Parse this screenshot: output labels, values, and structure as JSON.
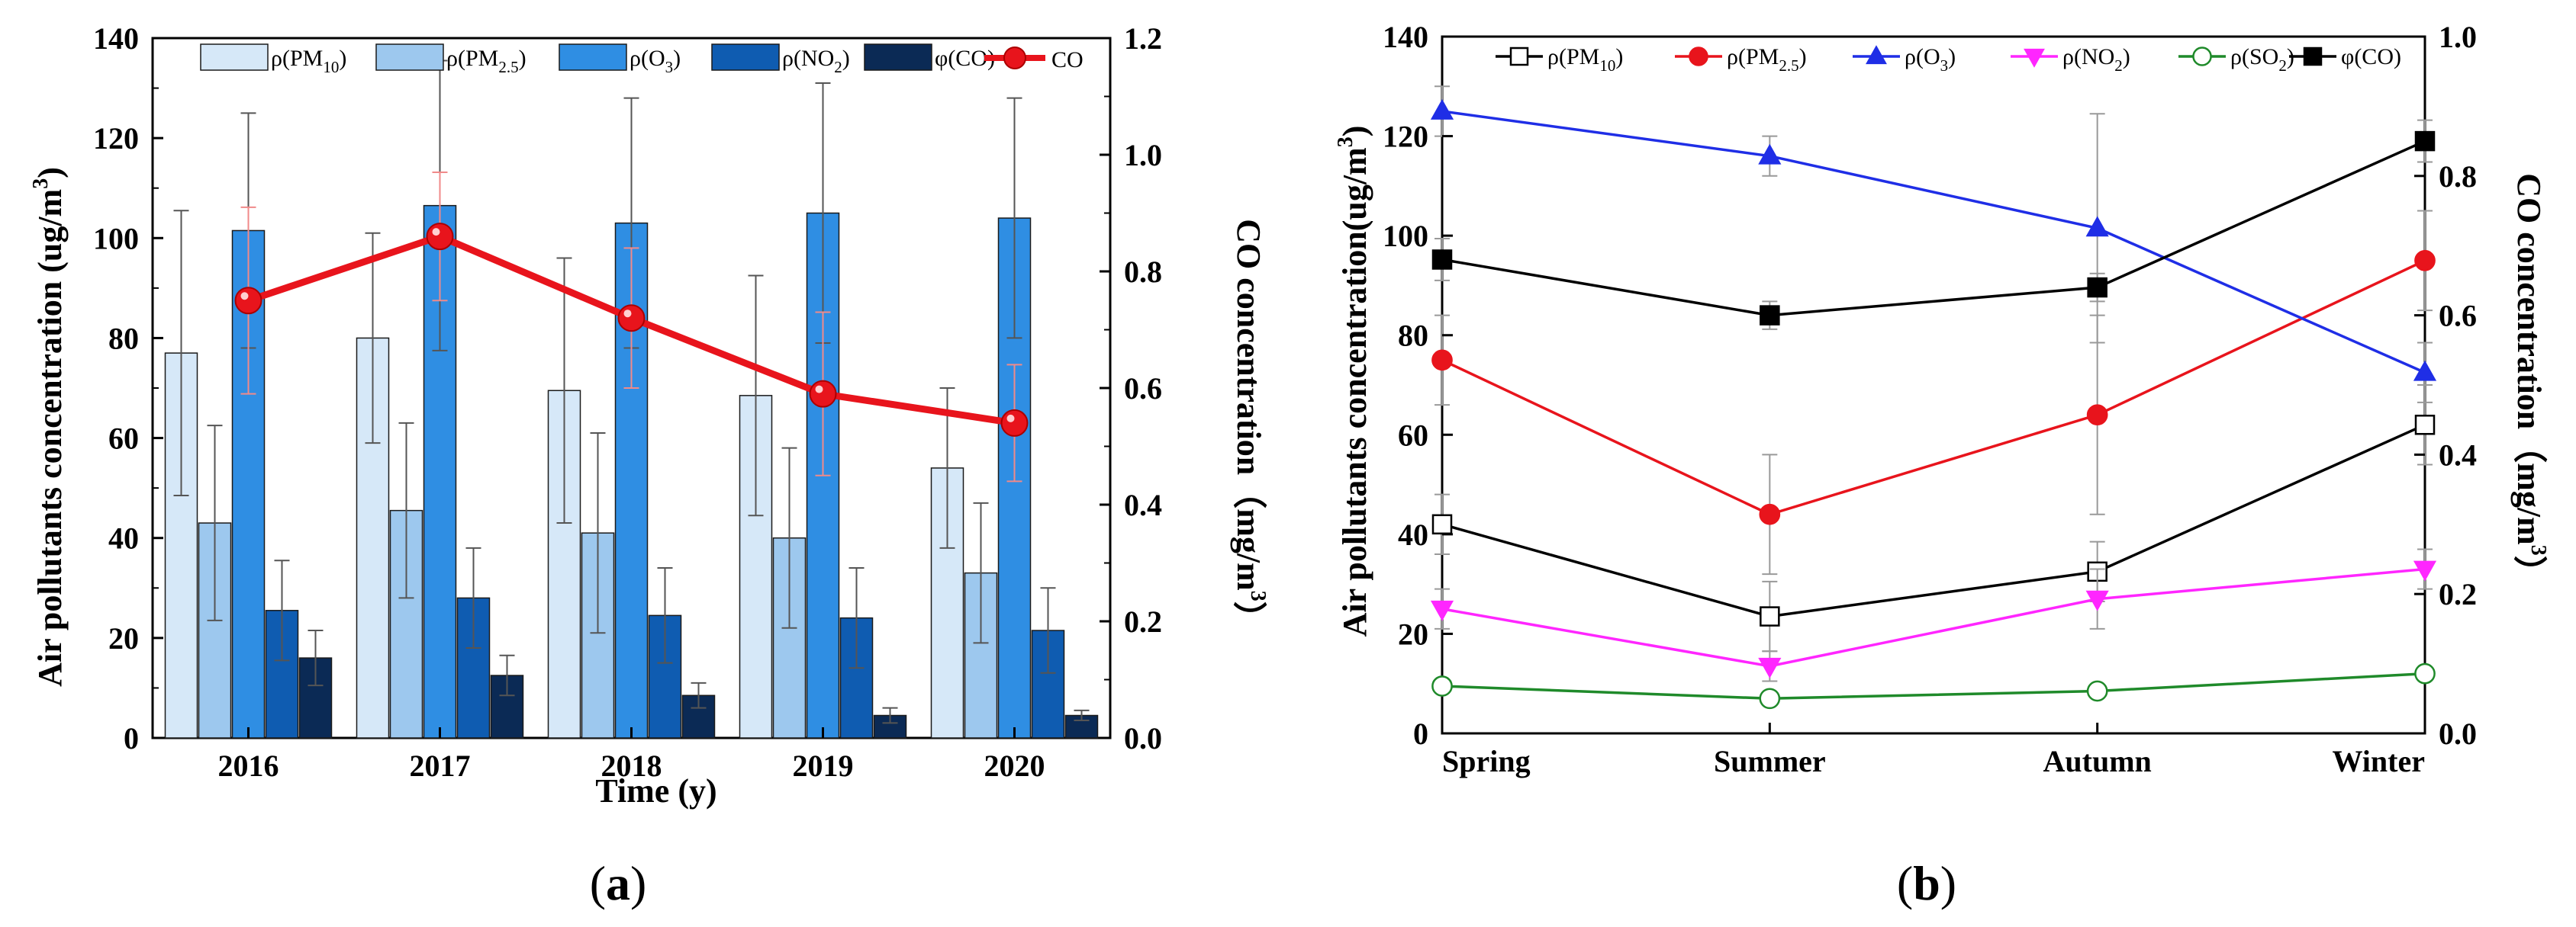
{
  "panels": [
    {
      "label": "a"
    },
    {
      "label": "b"
    }
  ],
  "chart_data": [
    {
      "type": "bar",
      "title": "",
      "xlabel": "Time (y)",
      "ylabel": "Air pollutants concentration (ug/m",
      "ylabel_sup": "3",
      "ylabel_tail": ")",
      "y2label": "CO concentration（mg/m",
      "y2label_sup": "3",
      "y2label_tail": "）",
      "categories": [
        "2016",
        "2017",
        "2018",
        "2019",
        "2020"
      ],
      "ylim": [
        0,
        140
      ],
      "yticks": [
        "0",
        "20",
        "40",
        "60",
        "80",
        "100",
        "120",
        "140"
      ],
      "y2lim": [
        0,
        1.2
      ],
      "y2ticks": [
        "0.0",
        "0.2",
        "0.4",
        "0.6",
        "0.8",
        "1.0",
        "1.2"
      ],
      "series": [
        {
          "name": "ρ(PM10)",
          "legend": {
            "pre": "ρ(PM",
            "sub": "10",
            "post": ")"
          },
          "color": "#d6e8f8",
          "values": [
            77,
            80,
            69.5,
            68.5,
            54
          ],
          "errors": [
            28.5,
            21,
            26.5,
            24,
            16
          ]
        },
        {
          "name": "ρ(PM2.5)",
          "legend": {
            "pre": "ρ(PM",
            "sub": "2.5",
            "post": ")"
          },
          "color": "#9dc8ee",
          "values": [
            43,
            45.5,
            41,
            40,
            33
          ],
          "errors": [
            19.5,
            17.5,
            20,
            18,
            14
          ]
        },
        {
          "name": "ρ(O3)",
          "legend": {
            "pre": "ρ(O",
            "sub": "3",
            "post": ")"
          },
          "color": "#2f8ee3",
          "values": [
            101.5,
            106.5,
            103,
            105,
            104
          ],
          "errors": [
            23.5,
            29,
            25,
            26,
            24
          ]
        },
        {
          "name": "ρ(NO2)",
          "legend": {
            "pre": "ρ(NO",
            "sub": "2",
            "post": ")"
          },
          "color": "#0f5cb1",
          "values": [
            25.5,
            28,
            24.5,
            24,
            21.5
          ],
          "errors": [
            10,
            10,
            9.5,
            10,
            8.5
          ]
        },
        {
          "name": "φ(CO)",
          "legend": {
            "pre": "φ(CO)",
            "sub": "",
            "post": ""
          },
          "color": "#0b2a55",
          "values": [
            16,
            12.5,
            8.5,
            4.5,
            4.5
          ],
          "errors": [
            5.5,
            4,
            2.5,
            1.5,
            1
          ]
        }
      ],
      "line_series": {
        "name": "CO",
        "axis": "right",
        "color": "#e8141c",
        "values": [
          0.75,
          0.86,
          0.72,
          0.59,
          0.54
        ],
        "errors": [
          0.16,
          0.11,
          0.12,
          0.14,
          0.1
        ]
      }
    },
    {
      "type": "line",
      "title": "",
      "xlabel": "",
      "ylabel": "Air pollutants concentration(ug/m",
      "ylabel_sup": "3",
      "ylabel_tail": ")",
      "y2label": "CO concentration（mg/m",
      "y2label_sup": "3",
      "y2label_tail": "）",
      "categories": [
        "Spring",
        "Summer",
        "Autumn",
        "Winter"
      ],
      "ylim": [
        0,
        140
      ],
      "yticks": [
        "0",
        "20",
        "40",
        "60",
        "80",
        "100",
        "120",
        "140"
      ],
      "y2lim": [
        0,
        1.0
      ],
      "y2ticks": [
        "0.0",
        "0.2",
        "0.4",
        "0.6",
        "0.8",
        "1.0"
      ],
      "series": [
        {
          "name": "ρ(PM10)",
          "legend": {
            "pre": "ρ(PM",
            "sub": "10",
            "post": ")"
          },
          "color": "#000000",
          "marker": "square-open",
          "axis": "left",
          "values": [
            42,
            23.5,
            32.5,
            62
          ],
          "errors": [
            6,
            7,
            6,
            8
          ]
        },
        {
          "name": "ρ(PM2.5)",
          "legend": {
            "pre": "ρ(PM",
            "sub": "2.5",
            "post": ")"
          },
          "color": "#e8141c",
          "marker": "circle",
          "axis": "left",
          "values": [
            75,
            44,
            64,
            95
          ],
          "errors": [
            9,
            12,
            20,
            10
          ]
        },
        {
          "name": "ρ(O3)",
          "legend": {
            "pre": "ρ(O",
            "sub": "3",
            "post": ")"
          },
          "color": "#1f2ee6",
          "marker": "triangle-up",
          "axis": "left",
          "values": [
            125,
            116,
            101.5,
            72.5
          ],
          "errors": [
            5,
            4,
            23,
            6
          ]
        },
        {
          "name": "ρ(NO2)",
          "legend": {
            "pre": "ρ(NO",
            "sub": "2",
            "post": ")"
          },
          "color": "#ff26ff",
          "marker": "triangle-down",
          "axis": "left",
          "values": [
            25,
            13.5,
            27,
            33
          ],
          "errors": [
            4,
            3,
            6,
            4
          ]
        },
        {
          "name": "ρ(SO2)",
          "legend": {
            "pre": "ρ(SO",
            "sub": "2",
            "post": ")"
          },
          "color": "#1f8a2a",
          "marker": "circle-open",
          "axis": "left",
          "values": [
            9.5,
            7,
            8.5,
            12
          ],
          "errors": [
            1,
            1,
            1,
            1
          ]
        },
        {
          "name": "φ(CO)",
          "legend": {
            "pre": "φ(CO)",
            "sub": "",
            "post": ""
          },
          "color": "#000000",
          "marker": "square",
          "axis": "right",
          "values": [
            0.68,
            0.6,
            0.64,
            0.85
          ],
          "errors": [
            0.03,
            0.02,
            0.02,
            0.03
          ]
        }
      ]
    }
  ]
}
